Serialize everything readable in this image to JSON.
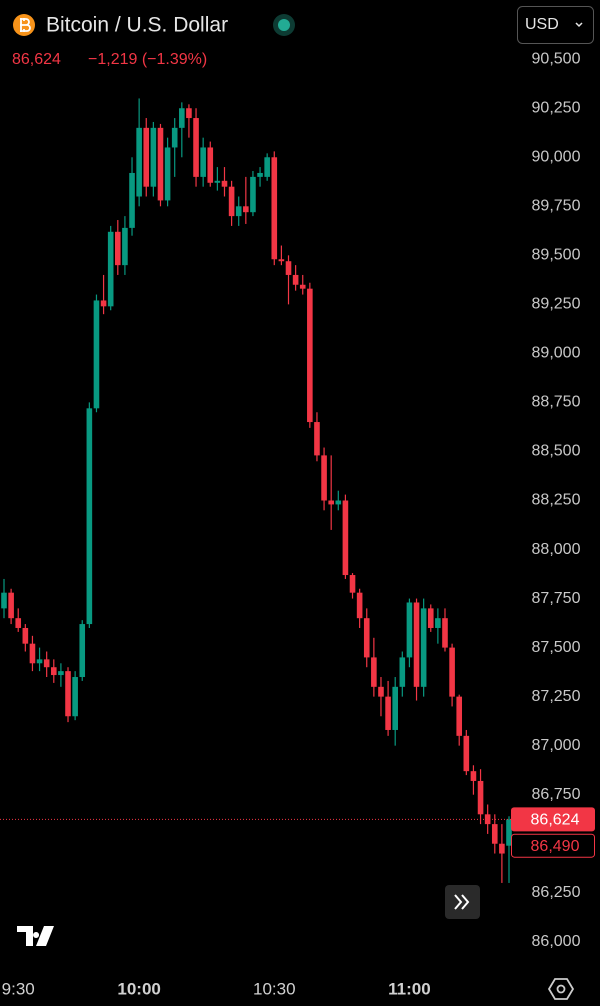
{
  "header": {
    "title": "Bitcoin / U.S. Dollar",
    "price": "86,624",
    "change": "−1,219 (−1.39%)",
    "currency": "USD"
  },
  "chart_data": {
    "type": "candlestick",
    "categories": [
      null,
      null,
      "9:30",
      null,
      null,
      null,
      null,
      null,
      null,
      null,
      null,
      null,
      null,
      null,
      null,
      null,
      null,
      null,
      null,
      "10:00",
      null,
      null,
      null,
      null,
      null,
      null,
      null,
      null,
      null,
      null,
      null,
      null,
      null,
      null,
      null,
      null,
      null,
      null,
      "10:30",
      null,
      null,
      null,
      null,
      null,
      null,
      null,
      null,
      null,
      null,
      null,
      null,
      null,
      null,
      null,
      null,
      null,
      null,
      "11:00",
      null,
      null,
      null,
      null,
      null,
      null,
      null,
      null,
      null,
      null,
      null,
      null,
      null,
      null
    ],
    "open": [
      87700,
      87780,
      87650,
      87600,
      87520,
      87420,
      87440,
      87400,
      87360,
      87380,
      87150,
      87350,
      87620,
      88720,
      89270,
      89240,
      89620,
      89450,
      89640,
      89800,
      90150,
      89850,
      90150,
      89780,
      90050,
      90150,
      90250,
      90200,
      89900,
      90050,
      89870,
      89880,
      89850,
      89700,
      89750,
      89720,
      89900,
      89900,
      90000,
      89480,
      89470,
      89400,
      89350,
      89330,
      88650,
      88480,
      88250,
      88230,
      88250,
      87870,
      87780,
      87650,
      87450,
      87300,
      87250,
      87080,
      87300,
      87450,
      87730,
      87300,
      87700,
      87600,
      87650,
      87500,
      87250,
      87050,
      86870,
      86820,
      86650,
      86600,
      86500,
      86490
    ],
    "high": [
      87850,
      87800,
      87700,
      87620,
      87560,
      87500,
      87480,
      87440,
      87420,
      87400,
      87380,
      87640,
      88750,
      89300,
      89400,
      89650,
      89680,
      89700,
      90000,
      90300,
      90200,
      90180,
      90170,
      90100,
      90200,
      90280,
      90270,
      90250,
      90100,
      90080,
      89950,
      89950,
      89880,
      89800,
      89900,
      89930,
      89950,
      90020,
      90030,
      89550,
      89500,
      89450,
      89400,
      89360,
      88700,
      88520,
      88480,
      88300,
      88280,
      87880,
      87800,
      87700,
      87550,
      87350,
      87330,
      87350,
      87480,
      87750,
      87750,
      87750,
      87720,
      87700,
      87700,
      87520,
      87260,
      87080,
      86900,
      86880,
      86700,
      86650,
      86600,
      86640
    ],
    "low": [
      87650,
      87620,
      87580,
      87480,
      87380,
      87380,
      87350,
      87320,
      87300,
      87120,
      87130,
      87330,
      87600,
      88700,
      89200,
      89220,
      89400,
      89400,
      89600,
      89750,
      89800,
      89800,
      89750,
      89750,
      89900,
      90000,
      90100,
      89850,
      89850,
      89850,
      89830,
      89800,
      89650,
      89650,
      89660,
      89700,
      89850,
      89880,
      89450,
      89450,
      89250,
      89320,
      89300,
      88620,
      88450,
      88200,
      88100,
      88200,
      87850,
      87750,
      87600,
      87400,
      87250,
      87150,
      87050,
      87000,
      87250,
      87400,
      87230,
      87250,
      87580,
      87520,
      87480,
      87200,
      87000,
      86850,
      86750,
      86600,
      86550,
      86450,
      86300,
      86300
    ],
    "close": [
      87780,
      87650,
      87600,
      87520,
      87420,
      87440,
      87400,
      87360,
      87380,
      87150,
      87350,
      87620,
      88720,
      89270,
      89240,
      89620,
      89450,
      89640,
      89920,
      90150,
      89850,
      90150,
      89780,
      90050,
      90150,
      90250,
      90200,
      89900,
      90050,
      89870,
      89880,
      89850,
      89700,
      89750,
      89720,
      89900,
      89920,
      90000,
      89480,
      89470,
      89400,
      89350,
      89330,
      88650,
      88480,
      88250,
      88230,
      88250,
      87870,
      87780,
      87650,
      87450,
      87300,
      87250,
      87080,
      87300,
      87450,
      87730,
      87300,
      87700,
      87600,
      87650,
      87500,
      87250,
      87050,
      86870,
      86820,
      86650,
      86600,
      86500,
      86450,
      86624
    ],
    "up_color": "#089981",
    "down_color": "#f23645",
    "ylim": [
      85950,
      90550
    ],
    "yticks": [
      {
        "value": 86000,
        "label": "86,000"
      },
      {
        "value": 86250,
        "label": "86,250"
      },
      {
        "value": 86500,
        "label": "86,500"
      },
      {
        "value": 86750,
        "label": "86,750"
      },
      {
        "value": 87000,
        "label": "87,000"
      },
      {
        "value": 87250,
        "label": "87,250"
      },
      {
        "value": 87500,
        "label": "87,500"
      },
      {
        "value": 87750,
        "label": "87,750"
      },
      {
        "value": 88000,
        "label": "88,000"
      },
      {
        "value": 88250,
        "label": "88,250"
      },
      {
        "value": 88500,
        "label": "88,500"
      },
      {
        "value": 88750,
        "label": "88,750"
      },
      {
        "value": 89000,
        "label": "89,000"
      },
      {
        "value": 89250,
        "label": "89,250"
      },
      {
        "value": 89500,
        "label": "89,500"
      },
      {
        "value": 89750,
        "label": "89,750"
      },
      {
        "value": 90000,
        "label": "90,000"
      },
      {
        "value": 90250,
        "label": "90,250"
      },
      {
        "value": 90500,
        "label": "90,500"
      }
    ],
    "price_lines": [
      {
        "value": 86624,
        "label": "86,624"
      },
      {
        "value": 86490,
        "label": "86,490"
      }
    ]
  }
}
